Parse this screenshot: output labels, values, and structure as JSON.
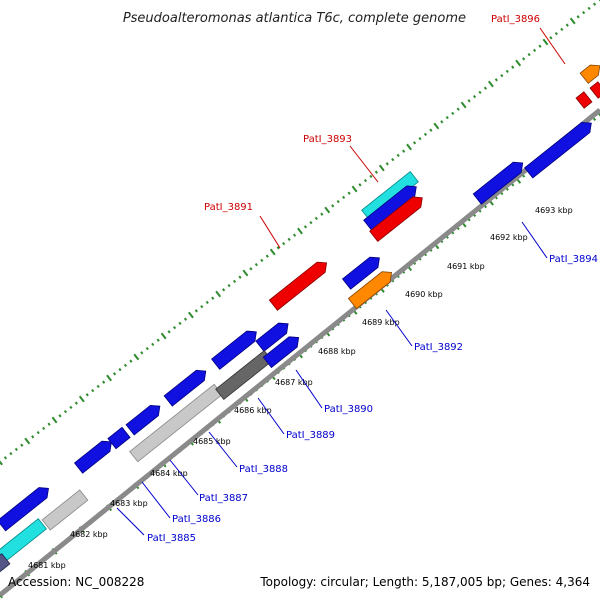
{
  "title": "Pseudoalteromonas atlantica T6c, complete genome",
  "footer": {
    "accession": "Accession: NC_008228",
    "summary": "Topology: circular; Length: 5,187,005 bp; Genes: 4,364"
  },
  "colors": {
    "backbone": "#8a8a8a",
    "dots": "#2e8b2e",
    "top_label": "#cc0000",
    "bottom_label": "#0000cc"
  },
  "ticks": [
    "4681 kbp",
    "4682 kbp",
    "4683 kbp",
    "4684 kbp",
    "4685 kbp",
    "4686 kbp",
    "4687 kbp",
    "4688 kbp",
    "4689 kbp",
    "4690 kbp",
    "4691 kbp",
    "4692 kbp",
    "4693 kbp"
  ],
  "top_labels": [
    "PatI_3891",
    "PatI_3893",
    "PatI_3896"
  ],
  "bottom_labels": [
    "PatI_3885",
    "PatI_3886",
    "PatI_3887",
    "PatI_3888",
    "PatI_3889",
    "PatI_3890",
    "PatI_3892",
    "PatI_3894"
  ]
}
